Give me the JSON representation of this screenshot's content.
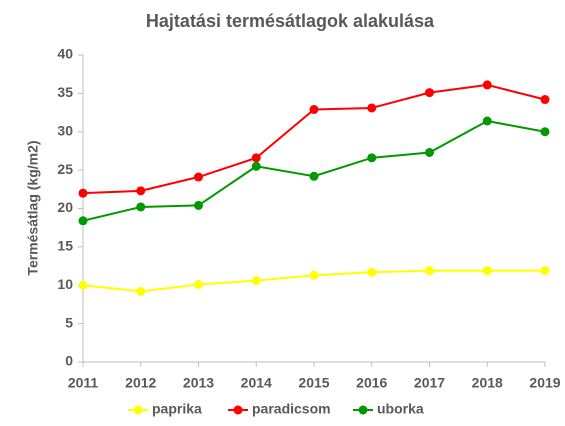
{
  "chart_data": {
    "type": "line",
    "title": "Hajtatási termésátlagok alakulása",
    "y_label": "Termésátlag (kg/m2)",
    "x": [
      2011,
      2012,
      2013,
      2014,
      2015,
      2016,
      2017,
      2018,
      2019
    ],
    "xlim": [
      2011,
      2019
    ],
    "xticks": [
      2011,
      2012,
      2013,
      2014,
      2015,
      2016,
      2017,
      2018,
      2019
    ],
    "ylim": [
      0,
      40
    ],
    "yticks": [
      0,
      5,
      10,
      15,
      20,
      25,
      30,
      35,
      40
    ],
    "grid": false,
    "legend": "bottom",
    "series": [
      {
        "name": "paprika",
        "color": "#ffff00",
        "values": [
          10,
          9.2,
          10.1,
          10.6,
          11.3,
          11.7,
          11.9,
          11.9,
          11.9
        ]
      },
      {
        "name": "paradicsom",
        "color": "#ff0000",
        "values": [
          22,
          22.3,
          24.1,
          26.6,
          32.9,
          33.1,
          35.1,
          36.1,
          34.2
        ]
      },
      {
        "name": "uborka",
        "color": "#009900",
        "values": [
          18.4,
          20.2,
          20.4,
          25.5,
          24.2,
          26.6,
          27.3,
          31.4,
          30
        ]
      }
    ]
  }
}
